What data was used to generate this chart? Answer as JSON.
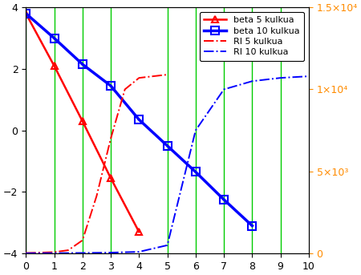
{
  "beta_5_x": [
    0,
    1,
    2,
    3,
    4
  ],
  "beta_5_y": [
    3.8,
    2.1,
    0.3,
    -1.55,
    -3.3
  ],
  "beta_10_x": [
    0,
    1,
    2,
    3,
    4,
    5,
    6,
    7,
    8
  ],
  "beta_10_y": [
    3.8,
    3.0,
    2.15,
    1.45,
    0.35,
    -0.5,
    -1.35,
    -2.25,
    -3.1
  ],
  "ri_5_x": [
    0,
    0.5,
    1.0,
    1.5,
    2.0,
    2.5,
    3.0,
    3.5,
    4.0,
    4.5,
    5.0
  ],
  "ri_5_y": [
    30,
    50,
    80,
    200,
    800,
    3500,
    7000,
    10000,
    10700,
    10800,
    10900
  ],
  "ri_10_x": [
    0,
    1,
    2,
    3,
    4,
    5,
    6,
    7,
    8,
    9,
    10
  ],
  "ri_10_y": [
    10,
    20,
    30,
    50,
    100,
    500,
    7500,
    10000,
    10500,
    10700,
    10800
  ],
  "vlines_x": [
    0,
    1,
    2,
    3,
    5,
    6,
    7,
    8,
    9
  ],
  "xlim": [
    0,
    10
  ],
  "ylim_left": [
    -4,
    4
  ],
  "ylim_right": [
    0,
    15000
  ],
  "yticks_left": [
    -4,
    -2,
    0,
    2,
    4
  ],
  "yticks_right": [
    0,
    5000,
    10000,
    15000
  ],
  "ytick_labels_right": [
    "0",
    "5×10³",
    "1×10⁴",
    "1.5×10⁴"
  ],
  "xticks": [
    0,
    1,
    2,
    3,
    4,
    5,
    6,
    7,
    8,
    9,
    10
  ],
  "color_red": "#FF0000",
  "color_blue": "#0000FF",
  "color_orange": "#FF8C00",
  "color_green": "#00CC00",
  "vline_color": "#00CC00",
  "legend_labels": [
    "beta 5 kulkua",
    "beta 10 kulkua",
    "RI 5 kulkua",
    "RI 10 kulkua"
  ],
  "background_color": "#FFFFFF",
  "figsize": [
    4.5,
    3.43
  ],
  "dpi": 100
}
